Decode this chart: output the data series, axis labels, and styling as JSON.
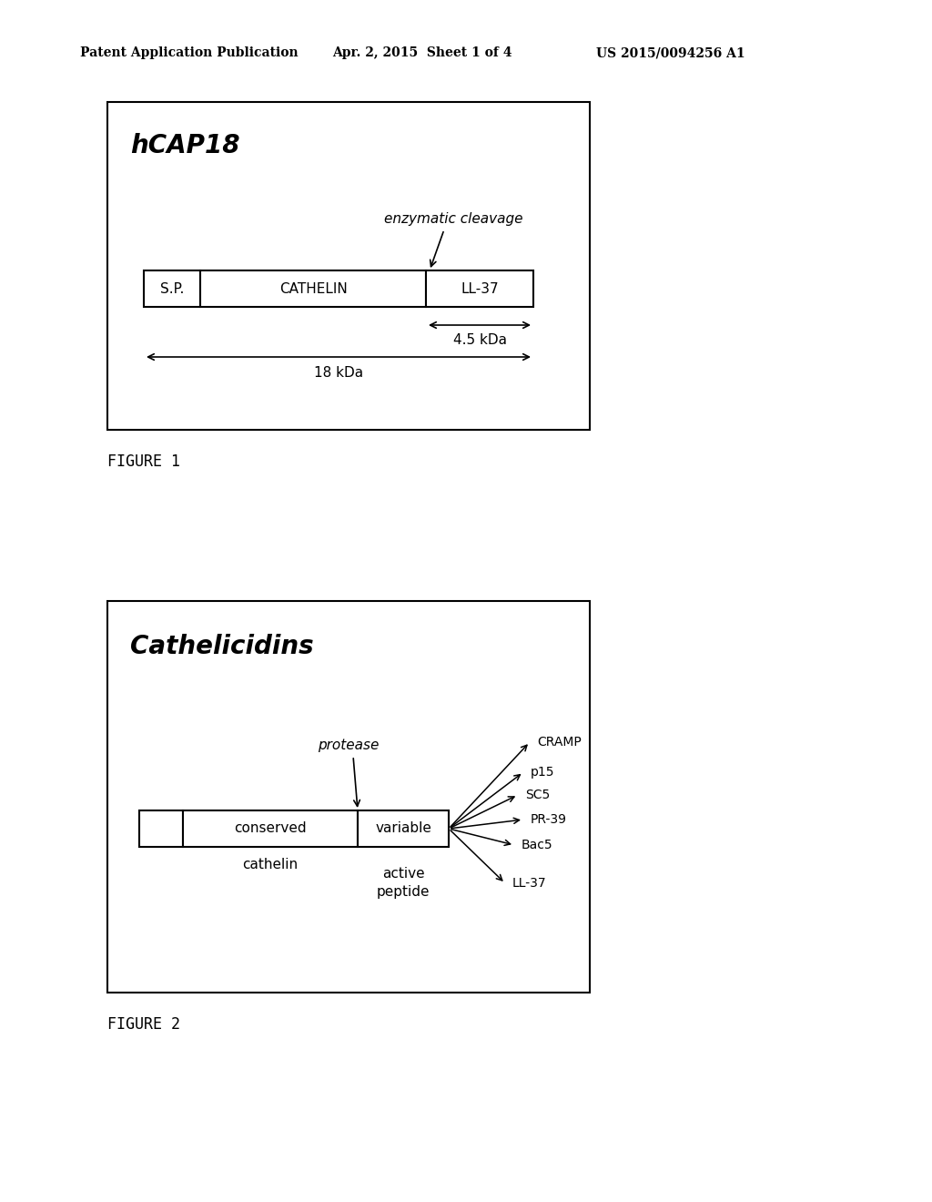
{
  "bg_color": "#ffffff",
  "header_text": "Patent Application Publication",
  "header_date": "Apr. 2, 2015  Sheet 1 of 4",
  "header_patent": "US 2015/0094256 A1",
  "fig1_title": "hCAP18",
  "fig1_label": "enzymatic cleavage",
  "fig1_sp": "S.P.",
  "fig1_cathelin": "CATHELIN",
  "fig1_ll37": "LL-37",
  "fig1_kda45": "4.5 kDa",
  "fig1_kda18": "18 kDa",
  "fig1_caption": "FIGURE 1",
  "fig2_title": "Cathelicidins",
  "fig2_label": "protease",
  "fig2_conserved": "conserved",
  "fig2_cathelin_sub": "cathelin",
  "fig2_variable": "variable",
  "fig2_active": "active\npeptide",
  "fig2_peptides": [
    "CRAMP",
    "p15",
    "SC5",
    "PR-39",
    "Bac5",
    "LL-37"
  ],
  "fig2_caption": "FIGURE 2",
  "header_fontsize": 10,
  "title1_fontsize": 20,
  "title2_fontsize": 20,
  "label_fontsize": 11,
  "bar_fontsize": 11,
  "caption_fontsize": 12,
  "peptide_fontsize": 10
}
